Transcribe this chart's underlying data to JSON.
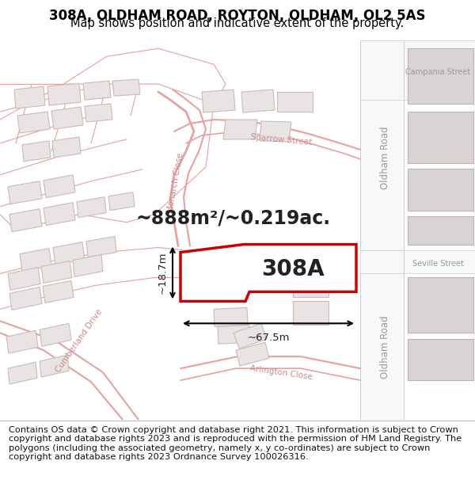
{
  "title": "308A, OLDHAM ROAD, ROYTON, OLDHAM, OL2 5AS",
  "subtitle": "Map shows position and indicative extent of the property.",
  "footer": "Contains OS data © Crown copyright and database right 2021. This information is subject to Crown copyright and database rights 2023 and is reproduced with the permission of HM Land Registry. The polygons (including the associated geometry, namely x, y co-ordinates) are subject to Crown copyright and database rights 2023 Ordnance Survey 100026316.",
  "map_bg": "#fafafa",
  "building_fill": "#e8e4e4",
  "building_edge": "#d0b8b8",
  "highlight_fill": "#ffffff",
  "highlight_edge": "#cc0000",
  "highlight_lw": 2.2,
  "road_line_color": "#e8a0a0",
  "road_fill": "#ffffff",
  "area_text": "~888m²/~0.219ac.",
  "area_text_size": 17,
  "label_308A": "308A",
  "label_308A_size": 20,
  "dim_width": "~67.5m",
  "dim_height": "~18.7m",
  "title_fontsize": 12,
  "subtitle_fontsize": 10.5,
  "footer_fontsize": 8.2,
  "title_weight": "normal",
  "oldham_road_color": "#dddddd",
  "street_text_color": "#cc8888",
  "gray_text_color": "#999999"
}
